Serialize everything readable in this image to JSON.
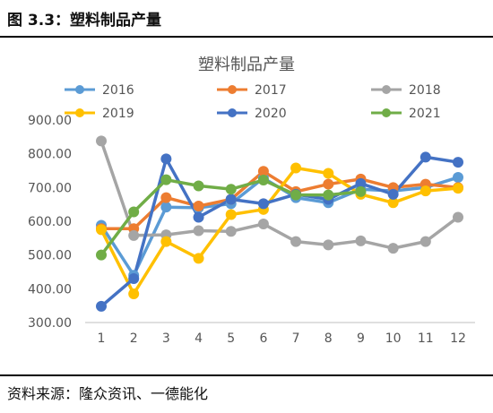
{
  "figure": {
    "title": "图 3.3：塑料制品产量",
    "source": "资料来源：隆众资讯、一德能化"
  },
  "chart_data": {
    "type": "line",
    "title": "塑料制品产量",
    "xlabel": "",
    "ylabel": "",
    "ylim": [
      300,
      900
    ],
    "y_ticks": [
      300,
      400,
      500,
      600,
      700,
      800,
      900
    ],
    "y_tick_labels": [
      "300.00",
      "400.00",
      "500.00",
      "600.00",
      "700.00",
      "800.00",
      "900.00"
    ],
    "categories": [
      "1",
      "2",
      "3",
      "4",
      "5",
      "6",
      "7",
      "8",
      "9",
      "10",
      "11",
      "12"
    ],
    "grid": false,
    "legend_position": "top",
    "series": [
      {
        "name": "2016",
        "color": "#5B9BD5",
        "values": [
          588,
          440,
          642,
          640,
          652,
          728,
          670,
          655,
          695,
          690,
          700,
          730
        ]
      },
      {
        "name": "2017",
        "color": "#ED7D31",
        "values": [
          578,
          578,
          670,
          645,
          665,
          748,
          688,
          710,
          725,
          700,
          710,
          700
        ]
      },
      {
        "name": "2018",
        "color": "#A5A5A5",
        "values": [
          838,
          558,
          560,
          572,
          570,
          592,
          540,
          530,
          542,
          520,
          540,
          612
        ]
      },
      {
        "name": "2019",
        "color": "#FFC000",
        "values": [
          575,
          385,
          540,
          490,
          620,
          635,
          758,
          742,
          680,
          655,
          690,
          698
        ]
      },
      {
        "name": "2020",
        "color": "#4472C4",
        "values": [
          348,
          430,
          785,
          612,
          665,
          652,
          680,
          665,
          712,
          680,
          790,
          775
        ]
      },
      {
        "name": "2021",
        "color": "#70AD47",
        "values": [
          500,
          628,
          723,
          705,
          695,
          722,
          678,
          678,
          688,
          null,
          null,
          null
        ]
      }
    ]
  }
}
